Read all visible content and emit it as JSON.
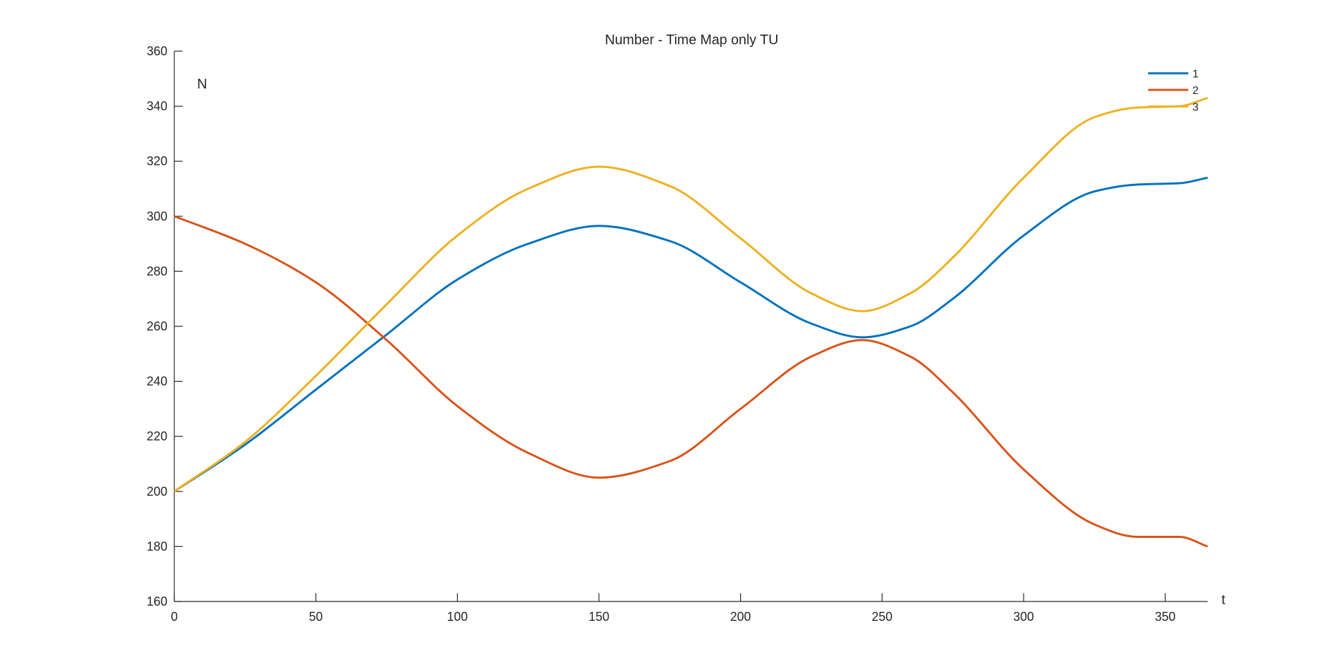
{
  "chart_data": {
    "type": "line",
    "title": "Number - Time Map only TU",
    "xlabel": "t",
    "ylabel": "N",
    "xlim": [
      0,
      365
    ],
    "ylim": [
      160,
      360
    ],
    "xticks": [
      0,
      50,
      100,
      150,
      200,
      250,
      300,
      350
    ],
    "yticks": [
      160,
      180,
      200,
      220,
      240,
      260,
      280,
      300,
      320,
      340,
      360
    ],
    "grid": false,
    "legend_position": "top-right",
    "series": [
      {
        "name": "1",
        "color": "#0072BD",
        "x": [
          0,
          25,
          50,
          75,
          100,
          125,
          150,
          175,
          200,
          225,
          243,
          260,
          275,
          300,
          325,
          340,
          355,
          365
        ],
        "y": [
          200,
          217,
          237,
          257,
          277,
          290,
          296.5,
          291,
          276,
          261,
          256,
          260,
          270,
          293,
          309,
          311.5,
          312,
          314
        ]
      },
      {
        "name": "2",
        "color": "#D95319",
        "x": [
          0,
          25,
          50,
          75,
          100,
          125,
          150,
          175,
          200,
          225,
          243,
          260,
          275,
          300,
          325,
          340,
          355,
          365
        ],
        "y": [
          300,
          290,
          276,
          255,
          231,
          214,
          205,
          211,
          230,
          249,
          255,
          249,
          236,
          208,
          188,
          183.5,
          183.5,
          180
        ]
      },
      {
        "name": "3",
        "color": "#EDB120",
        "x": [
          0,
          25,
          50,
          75,
          100,
          125,
          150,
          175,
          200,
          225,
          243,
          260,
          275,
          300,
          325,
          340,
          355,
          365
        ],
        "y": [
          200,
          218,
          242,
          268,
          293,
          310,
          318,
          311,
          292,
          272,
          265.5,
          272,
          285,
          314,
          336,
          339.5,
          340,
          343
        ]
      }
    ]
  }
}
